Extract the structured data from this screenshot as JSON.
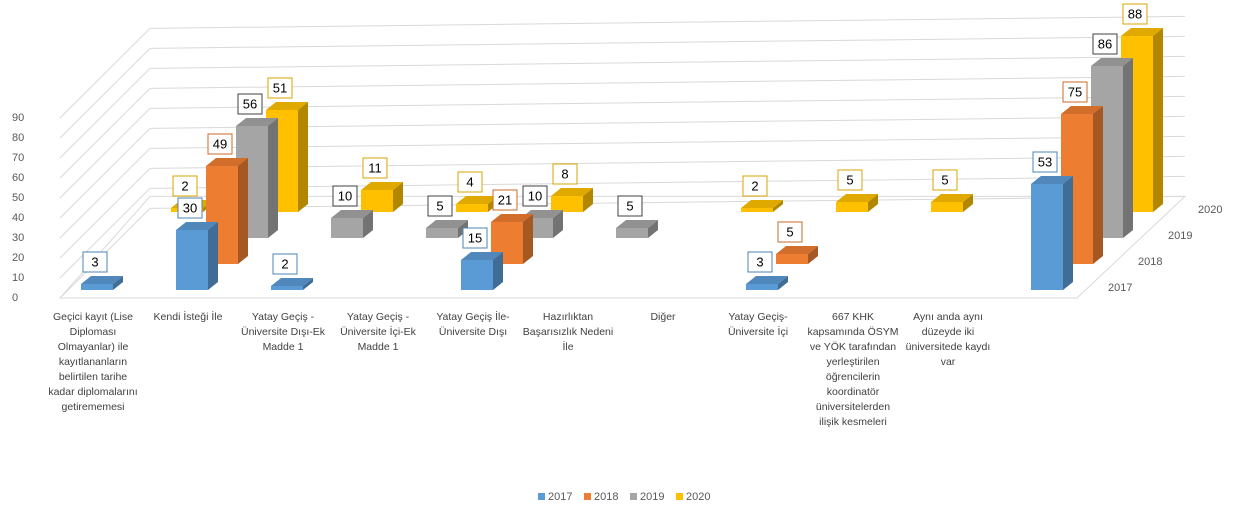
{
  "chart_data": {
    "type": "bar3d",
    "categories": [
      "Geçici kayıt (Lise Diploması Olmayanlar) ile kayıtlananların belirtilen tarihe kadar diplomalarını getirememesi",
      "Kendi İsteği İle",
      "Yatay Geçiş - Üniversite Dışı-Ek Madde 1",
      "Yatay Geçiş - Üniversite İçi-Ek Madde 1",
      "Yatay Geçiş İle-Üniversite Dışı",
      "Hazırlıktan Başarısızlık Nedeni İle",
      "Diğer",
      "Yatay Geçiş-Üniversite İçi",
      "667 KHK kapsamında ÖSYM ve YÖK tarafından yerleştirilen öğrencilerin koordinatör üniversitelerden ilişik kesmeleri",
      "Aynı anda aynı düzeyde iki üniversitede kaydı var",
      null
    ],
    "series": [
      {
        "name": "2017",
        "color": "#5b9bd5",
        "values": [
          3,
          30,
          2,
          null,
          15,
          null,
          null,
          3,
          null,
          null,
          53
        ]
      },
      {
        "name": "2018",
        "color": "#ed7d31",
        "values": [
          null,
          49,
          null,
          null,
          21,
          null,
          null,
          5,
          null,
          null,
          75
        ]
      },
      {
        "name": "2019",
        "color": "#a5a5a5",
        "values": [
          null,
          56,
          10,
          5,
          10,
          5,
          null,
          null,
          null,
          null,
          86
        ]
      },
      {
        "name": "2020",
        "color": "#ffc000",
        "values": [
          2,
          51,
          11,
          4,
          8,
          null,
          2,
          5,
          5,
          null,
          88
        ]
      }
    ],
    "ylim": [
      0,
      90
    ],
    "yticks": [
      0,
      10,
      20,
      30,
      40,
      50,
      60,
      70,
      80,
      90
    ],
    "grid": true,
    "legend": "bottom"
  }
}
